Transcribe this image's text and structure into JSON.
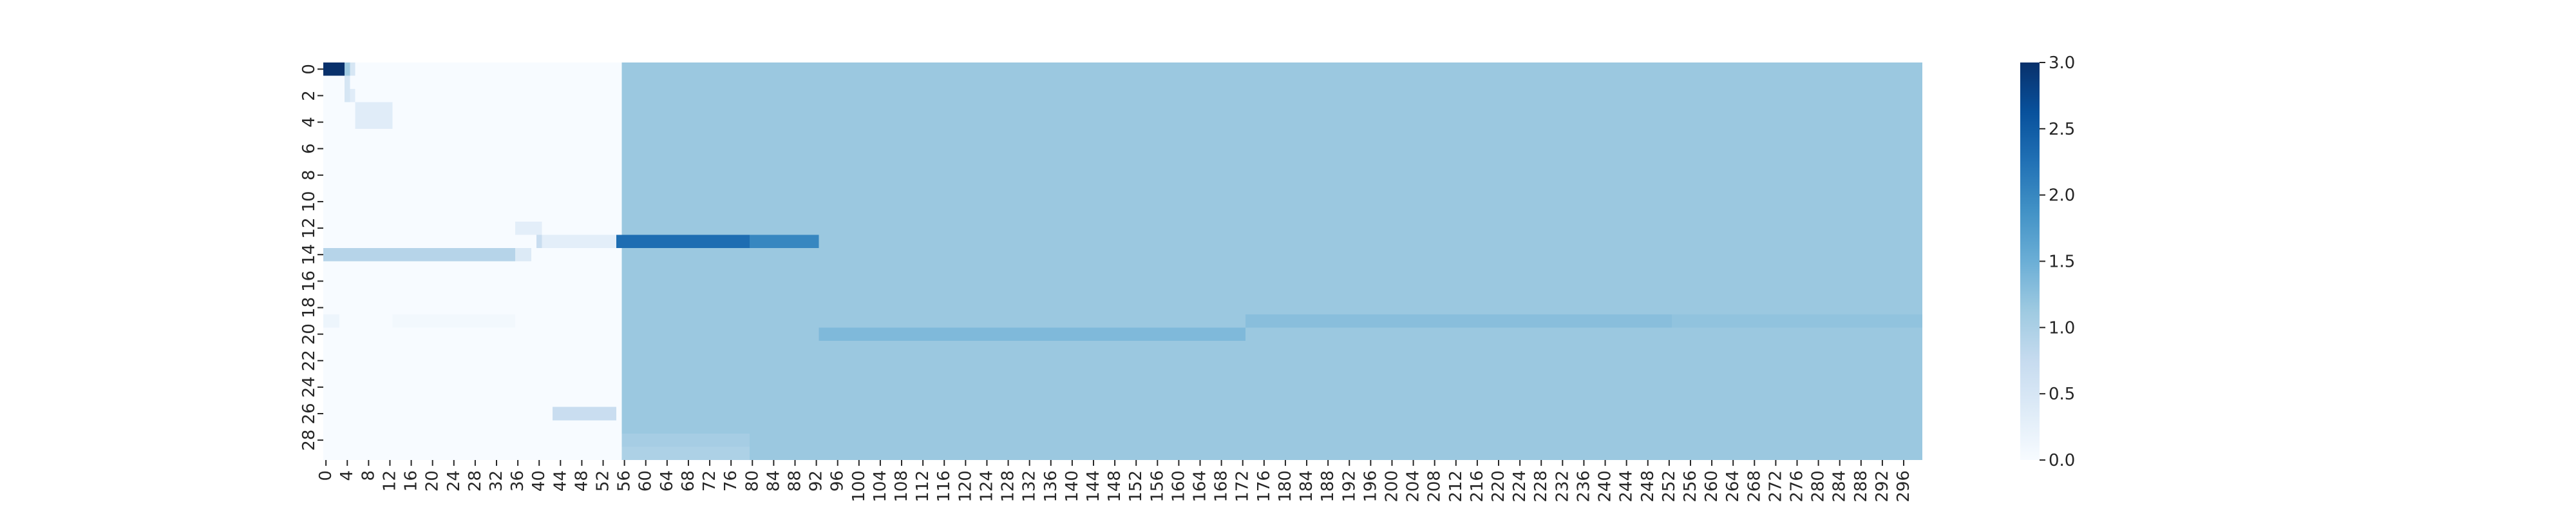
{
  "chart_data": {
    "type": "heatmap",
    "colormap": "Blues",
    "n_rows": 30,
    "n_cols": 300,
    "x_ticks": [
      0,
      4,
      8,
      12,
      16,
      20,
      24,
      28,
      32,
      36,
      40,
      44,
      48,
      52,
      56,
      60,
      64,
      68,
      72,
      76,
      80,
      84,
      88,
      92,
      96,
      100,
      104,
      108,
      112,
      116,
      120,
      124,
      128,
      132,
      136,
      140,
      144,
      148,
      152,
      156,
      160,
      164,
      168,
      172,
      176,
      180,
      184,
      188,
      192,
      196,
      200,
      204,
      208,
      212,
      216,
      220,
      224,
      228,
      232,
      236,
      240,
      244,
      248,
      252,
      256,
      260,
      264,
      268,
      272,
      276,
      280,
      284,
      288,
      292,
      296
    ],
    "y_ticks": [
      0,
      2,
      4,
      6,
      8,
      10,
      12,
      14,
      16,
      18,
      20,
      22,
      24,
      26,
      28
    ],
    "base_left": {
      "cols": [
        0,
        55
      ],
      "value": 0.0
    },
    "base_right": {
      "cols": [
        56,
        299
      ],
      "value": 1.15
    },
    "cells": [
      {
        "rows": [
          0,
          0
        ],
        "cols": [
          0,
          3
        ],
        "value": 3.0
      },
      {
        "rows": [
          0,
          0
        ],
        "cols": [
          4,
          4
        ],
        "value": 1.1
      },
      {
        "rows": [
          0,
          0
        ],
        "cols": [
          5,
          5
        ],
        "value": 0.5
      },
      {
        "rows": [
          1,
          2
        ],
        "cols": [
          4,
          4
        ],
        "value": 0.5
      },
      {
        "rows": [
          2,
          2
        ],
        "cols": [
          5,
          5
        ],
        "value": 0.35
      },
      {
        "rows": [
          3,
          4
        ],
        "cols": [
          6,
          12
        ],
        "value": 0.35
      },
      {
        "rows": [
          12,
          12
        ],
        "cols": [
          36,
          40
        ],
        "value": 0.3
      },
      {
        "rows": [
          13,
          13
        ],
        "cols": [
          40,
          40
        ],
        "value": 0.7
      },
      {
        "rows": [
          13,
          13
        ],
        "cols": [
          41,
          54
        ],
        "value": 0.3
      },
      {
        "rows": [
          13,
          13
        ],
        "cols": [
          55,
          79
        ],
        "value": 2.3
      },
      {
        "rows": [
          13,
          13
        ],
        "cols": [
          80,
          92
        ],
        "value": 2.0
      },
      {
        "rows": [
          14,
          14
        ],
        "cols": [
          0,
          35
        ],
        "value": 0.9
      },
      {
        "rows": [
          14,
          14
        ],
        "cols": [
          36,
          38
        ],
        "value": 0.4
      },
      {
        "rows": [
          19,
          19
        ],
        "cols": [
          0,
          2
        ],
        "value": 0.15
      },
      {
        "rows": [
          19,
          19
        ],
        "cols": [
          13,
          35
        ],
        "value": 0.08
      },
      {
        "rows": [
          19,
          19
        ],
        "cols": [
          93,
          172
        ],
        "value": 1.15
      },
      {
        "rows": [
          19,
          19
        ],
        "cols": [
          173,
          252
        ],
        "value": 1.28
      },
      {
        "rows": [
          19,
          19
        ],
        "cols": [
          253,
          299
        ],
        "value": 1.22
      },
      {
        "rows": [
          20,
          20
        ],
        "cols": [
          93,
          172
        ],
        "value": 1.35
      },
      {
        "rows": [
          26,
          26
        ],
        "cols": [
          43,
          54
        ],
        "value": 0.7
      },
      {
        "rows": [
          28,
          28
        ],
        "cols": [
          56,
          79
        ],
        "value": 1.05
      },
      {
        "rows": [
          29,
          29
        ],
        "cols": [
          56,
          79
        ],
        "value": 0.98
      }
    ],
    "colorbar": {
      "min": 0.0,
      "max": 3.0,
      "ticks": [
        "0.0",
        "0.5",
        "1.0",
        "1.5",
        "2.0",
        "2.5",
        "3.0"
      ]
    }
  }
}
